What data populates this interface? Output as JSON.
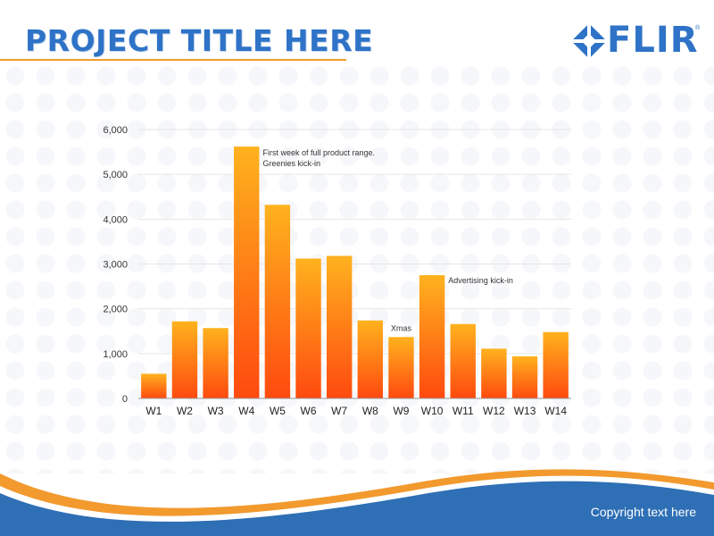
{
  "slide": {
    "title": "PROJECT TITLE HERE",
    "logo_text": "FLIR",
    "logo_mark": "®",
    "copyright": "Copyright text here"
  },
  "colors": {
    "title_blue": "#2e73c7",
    "accent_orange": "#f29a2e",
    "footer_blue": "#2e6fb5",
    "bar_top": "#ffb21e",
    "bar_bottom": "#ff4a0f"
  },
  "chart_data": {
    "type": "bar",
    "categories": [
      "W1",
      "W2",
      "W3",
      "W4",
      "W5",
      "W6",
      "W7",
      "W8",
      "W9",
      "W10",
      "W11",
      "W12",
      "W13",
      "W14"
    ],
    "values": [
      550,
      1720,
      1570,
      5620,
      4320,
      3120,
      3180,
      1740,
      1370,
      2750,
      1660,
      1110,
      940,
      1480
    ],
    "ylim": [
      0,
      6000
    ],
    "yticks": [
      0,
      1000,
      2000,
      3000,
      4000,
      5000,
      6000
    ],
    "ytick_labels": [
      "0",
      "1,000",
      "2,000",
      "3,000",
      "4,000",
      "5,000",
      "6,000"
    ],
    "grid": true,
    "annotations": [
      {
        "category": "W4",
        "lines": [
          "First week of full product range.",
          "Greenies kick-in"
        ]
      },
      {
        "category": "W9",
        "lines": [
          "Xmas"
        ]
      },
      {
        "category": "W10",
        "lines": [
          "Advertising kick-in"
        ]
      }
    ]
  }
}
